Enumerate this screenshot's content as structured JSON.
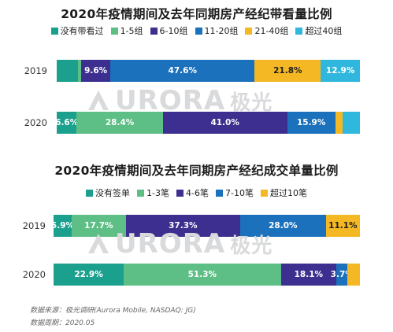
{
  "colors": {
    "none": "#1ca08e",
    "g1": "#5dbf85",
    "g2": "#3c2f8f",
    "g3": "#1b71bb",
    "g4": "#f5b825",
    "g5": "#2fb7de"
  },
  "watermark": {
    "text": "URORA",
    "suffix": "极光"
  },
  "chart_data": [
    {
      "type": "bar",
      "orientation": "horizontal-stacked-100",
      "title": "2020年疫情期间及去年同期房产经纪带看量比例",
      "legend_position": "top",
      "categories": [
        "2019",
        "2020"
      ],
      "series": [
        {
          "name": "没有带看过",
          "color": "#1ca08e",
          "values": [
            7.1,
            6.6
          ]
        },
        {
          "name": "1-5组",
          "color": "#5dbf85",
          "values": [
            1.0,
            28.4
          ]
        },
        {
          "name": "6-10组",
          "color": "#3c2f8f",
          "values": [
            9.6,
            41.0
          ]
        },
        {
          "name": "11-20组",
          "color": "#1b71bb",
          "values": [
            47.6,
            15.9
          ]
        },
        {
          "name": "21-40组",
          "color": "#f5b825",
          "values": [
            21.8,
            2.4
          ]
        },
        {
          "name": "超过40组",
          "color": "#2fb7de",
          "values": [
            12.9,
            5.7
          ]
        }
      ],
      "labels": [
        [
          "",
          "",
          "9.6%",
          "47.6%",
          "21.8%",
          "12.9%"
        ],
        [
          "6.6%",
          "28.4%",
          "41.0%",
          "15.9%",
          "",
          ""
        ]
      ]
    },
    {
      "type": "bar",
      "orientation": "horizontal-stacked-100",
      "title": "2020年疫情期间及去年同期房产经纪成交单量比例",
      "legend_position": "top",
      "categories": [
        "2019",
        "2020"
      ],
      "series": [
        {
          "name": "没有签单",
          "color": "#1ca08e",
          "values": [
            5.9,
            22.9
          ]
        },
        {
          "name": "1-3笔",
          "color": "#5dbf85",
          "values": [
            17.7,
            51.3
          ]
        },
        {
          "name": "4-6笔",
          "color": "#3c2f8f",
          "values": [
            37.3,
            18.1
          ]
        },
        {
          "name": "7-10笔",
          "color": "#1b71bb",
          "values": [
            28.0,
            3.7
          ]
        },
        {
          "name": "超过10笔",
          "color": "#f5b825",
          "values": [
            11.1,
            4.0
          ]
        }
      ],
      "labels": [
        [
          "5.9%",
          "17.7%",
          "37.3%",
          "28.0%",
          "11.1%"
        ],
        [
          "22.9%",
          "51.3%",
          "18.1%",
          "3.7%",
          ""
        ]
      ]
    }
  ],
  "source": {
    "line1": "数据来源：极光调研(Aurora Mobile, NASDAQ: JG)",
    "line2": "数据周期：2020.05"
  }
}
